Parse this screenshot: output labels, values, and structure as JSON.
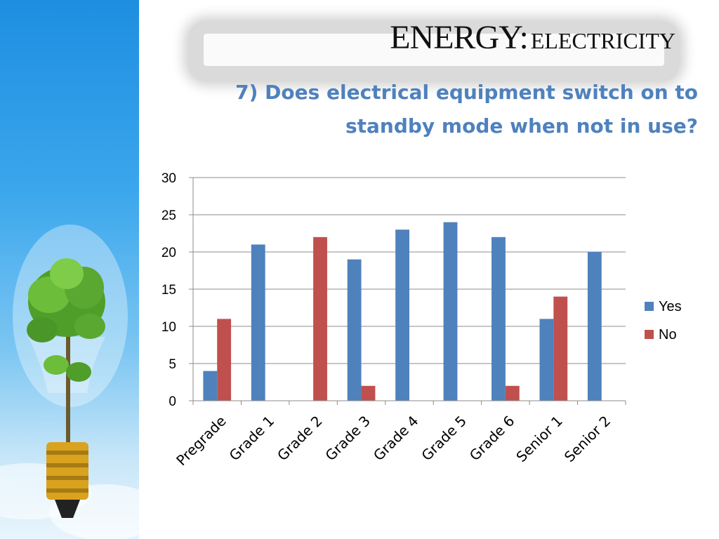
{
  "title": {
    "main": "ENERGY:",
    "sub": "ELECTRICITY"
  },
  "question": "7) Does electrical equipment switch on to standby mode when not in use?",
  "decoration": {
    "side_image": "light-bulb-with-tree"
  },
  "colors": {
    "yes": "#4f81bd",
    "no": "#c0504d",
    "question_text": "#4f81bd",
    "grid": "#8c8c8c"
  },
  "chart_data": {
    "type": "bar",
    "categories": [
      "Pregrade",
      "Grade 1",
      "Grade 2",
      "Grade 3",
      "Grade 4",
      "Grade 5",
      "Grade 6",
      "Senior 1",
      "Senior 2"
    ],
    "series": [
      {
        "name": "Yes",
        "values": [
          4,
          21,
          0,
          19,
          23,
          24,
          22,
          11,
          20
        ]
      },
      {
        "name": "No",
        "values": [
          11,
          0,
          22,
          2,
          0,
          0,
          2,
          14,
          0
        ]
      }
    ],
    "ylim": [
      0,
      30
    ],
    "yticks": [
      0,
      5,
      10,
      15,
      20,
      25,
      30
    ],
    "grid": true,
    "legend": "right"
  }
}
